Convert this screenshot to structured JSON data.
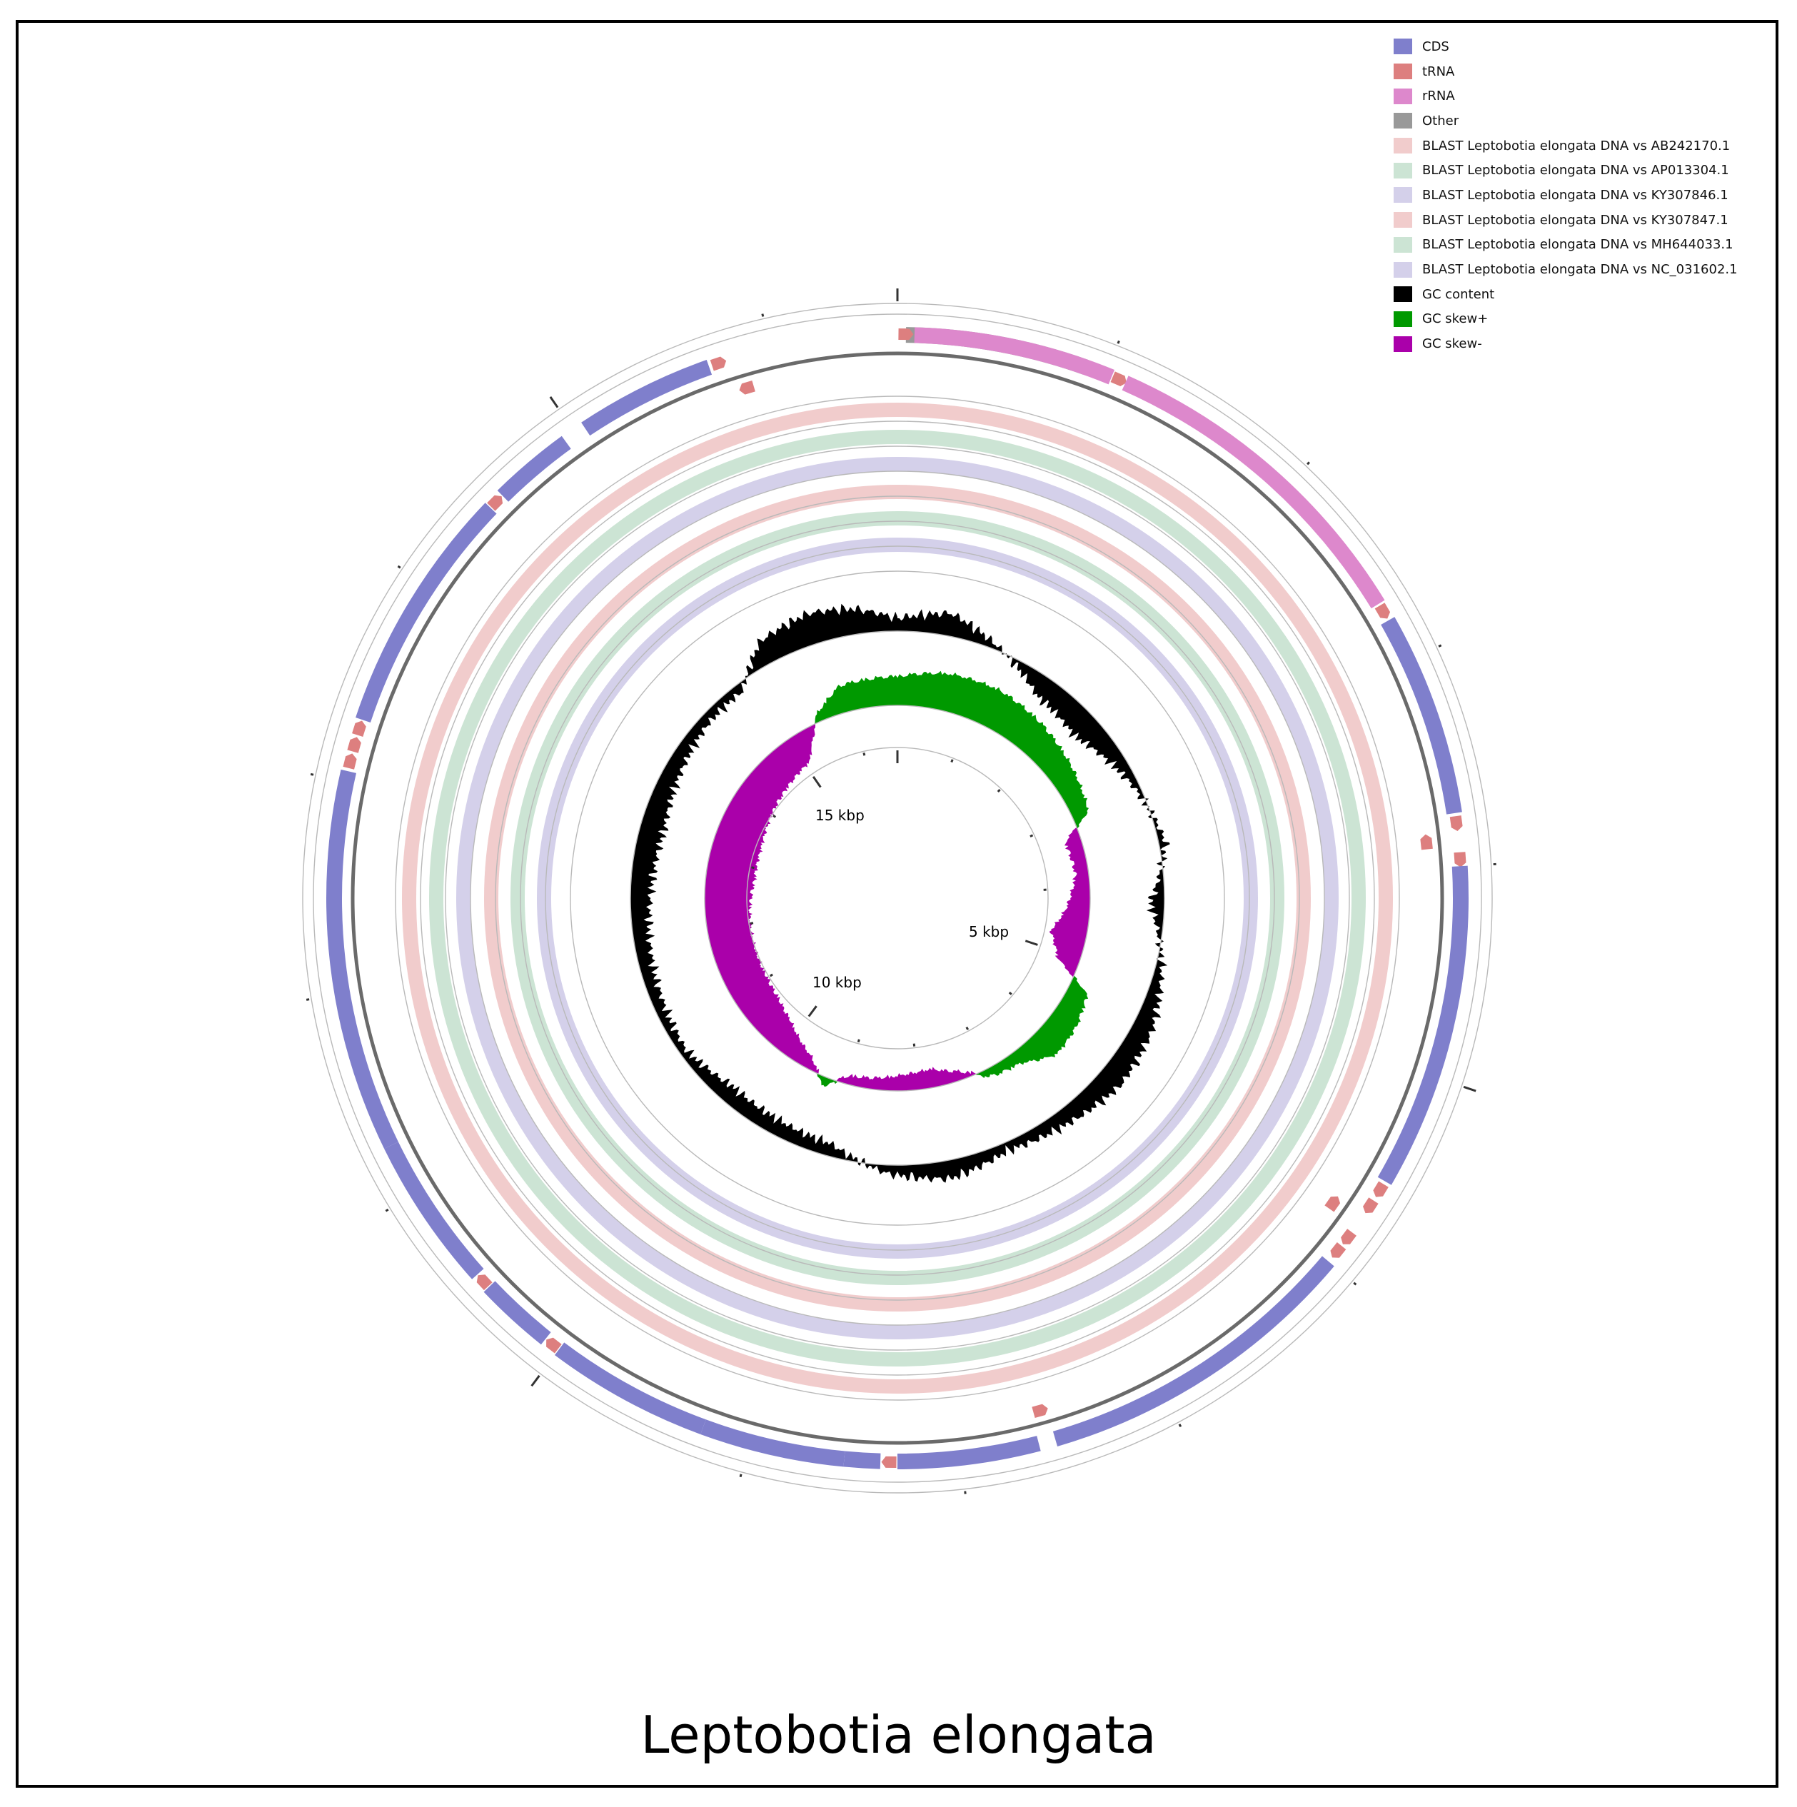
{
  "title": "Leptobotia elongata",
  "legend": [
    {
      "label": "CDS",
      "color": "#7f7fcc"
    },
    {
      "label": "tRNA",
      "color": "#dd7f7f"
    },
    {
      "label": "rRNA",
      "color": "#dd88cc"
    },
    {
      "label": "Other",
      "color": "#999999"
    },
    {
      "label": "BLAST Leptobotia elongata DNA vs AB242170.1",
      "color": "#f1cccc"
    },
    {
      "label": "BLAST Leptobotia elongata DNA vs AP013304.1",
      "color": "#cce4d4"
    },
    {
      "label": "BLAST Leptobotia elongata DNA vs KY307846.1",
      "color": "#d4d0ea"
    },
    {
      "label": "BLAST Leptobotia elongata DNA vs KY307847.1",
      "color": "#f1cccc"
    },
    {
      "label": "BLAST Leptobotia elongata DNA vs MH644033.1",
      "color": "#cce4d4"
    },
    {
      "label": "BLAST Leptobotia elongata DNA vs NC_031602.1",
      "color": "#d4d0ea"
    },
    {
      "label": "GC content",
      "color": "#000000"
    },
    {
      "label": "GC skew+",
      "color": "#009900"
    },
    {
      "label": "GC skew-",
      "color": "#aa00aa"
    }
  ],
  "kbp_labels": [
    "5 kbp",
    "10 kbp",
    "15 kbp"
  ],
  "genome": {
    "length_kbp": 16.6,
    "features": [
      {
        "type": "Other",
        "start": 0.04,
        "end": 0.9,
        "strand": "+"
      },
      {
        "type": "tRNA",
        "start": 0.0,
        "end": 0.07,
        "strand": "+"
      },
      {
        "type": "rRNA",
        "start": 0.08,
        "end": 1.03,
        "strand": "+"
      },
      {
        "type": "tRNA",
        "start": 1.03,
        "end": 1.1,
        "strand": "+"
      },
      {
        "type": "rRNA",
        "start": 1.1,
        "end": 2.7,
        "strand": "+"
      },
      {
        "type": "tRNA",
        "start": 2.7,
        "end": 2.78,
        "strand": "+"
      },
      {
        "type": "CDS",
        "start": 2.79,
        "end": 3.75,
        "strand": "+"
      },
      {
        "type": "tRNA",
        "start": 3.76,
        "end": 3.83,
        "strand": "+"
      },
      {
        "type": "tRNA",
        "start": 3.84,
        "end": 3.91,
        "strand": "-"
      },
      {
        "type": "tRNA",
        "start": 3.93,
        "end": 4.0,
        "strand": "+"
      },
      {
        "type": "CDS",
        "start": 4.0,
        "end": 5.54,
        "strand": "+"
      },
      {
        "type": "tRNA",
        "start": 5.55,
        "end": 5.62,
        "strand": "+"
      },
      {
        "type": "tRNA",
        "start": 5.64,
        "end": 5.71,
        "strand": "+"
      },
      {
        "type": "tRNA",
        "start": 5.73,
        "end": 5.8,
        "strand": "-"
      },
      {
        "type": "tRNA",
        "start": 5.82,
        "end": 5.89,
        "strand": "+"
      },
      {
        "type": "tRNA",
        "start": 5.9,
        "end": 5.97,
        "strand": "+"
      },
      {
        "type": "CDS",
        "start": 6.0,
        "end": 7.55,
        "strand": "+"
      },
      {
        "type": "tRNA",
        "start": 7.55,
        "end": 7.62,
        "strand": "-"
      },
      {
        "type": "CDS",
        "start": 7.63,
        "end": 8.3,
        "strand": "+"
      },
      {
        "type": "tRNA",
        "start": 8.3,
        "end": 8.37,
        "strand": "+"
      },
      {
        "type": "CDS",
        "start": 8.38,
        "end": 8.55,
        "strand": "+"
      },
      {
        "type": "CDS",
        "start": 8.55,
        "end": 9.23,
        "strand": "+"
      },
      {
        "type": "CDS",
        "start": 9.23,
        "end": 10.0,
        "strand": "+"
      },
      {
        "type": "tRNA",
        "start": 10.0,
        "end": 10.07,
        "strand": "+"
      },
      {
        "type": "CDS",
        "start": 10.08,
        "end": 10.44,
        "strand": "+"
      },
      {
        "type": "tRNA",
        "start": 10.44,
        "end": 10.51,
        "strand": "+"
      },
      {
        "type": "CDS",
        "start": 10.52,
        "end": 11.25,
        "strand": "+"
      },
      {
        "type": "CDS",
        "start": 11.25,
        "end": 13.05,
        "strand": "+"
      },
      {
        "type": "tRNA",
        "start": 13.06,
        "end": 13.13,
        "strand": "+"
      },
      {
        "type": "tRNA",
        "start": 13.14,
        "end": 13.21,
        "strand": "+"
      },
      {
        "type": "tRNA",
        "start": 13.22,
        "end": 13.29,
        "strand": "+"
      },
      {
        "type": "CDS",
        "start": 13.3,
        "end": 14.47,
        "strand": "+"
      },
      {
        "type": "tRNA",
        "start": 14.47,
        "end": 14.54,
        "strand": "+"
      },
      {
        "type": "CDS",
        "start": 14.55,
        "end": 14.94,
        "strand": "+"
      },
      {
        "type": "CDS",
        "start": 15.05,
        "end": 15.7,
        "strand": "+"
      },
      {
        "type": "tRNA",
        "start": 15.71,
        "end": 15.78,
        "strand": "+"
      },
      {
        "type": "tRNA",
        "start": 15.81,
        "end": 15.88,
        "strand": "-"
      }
    ]
  }
}
